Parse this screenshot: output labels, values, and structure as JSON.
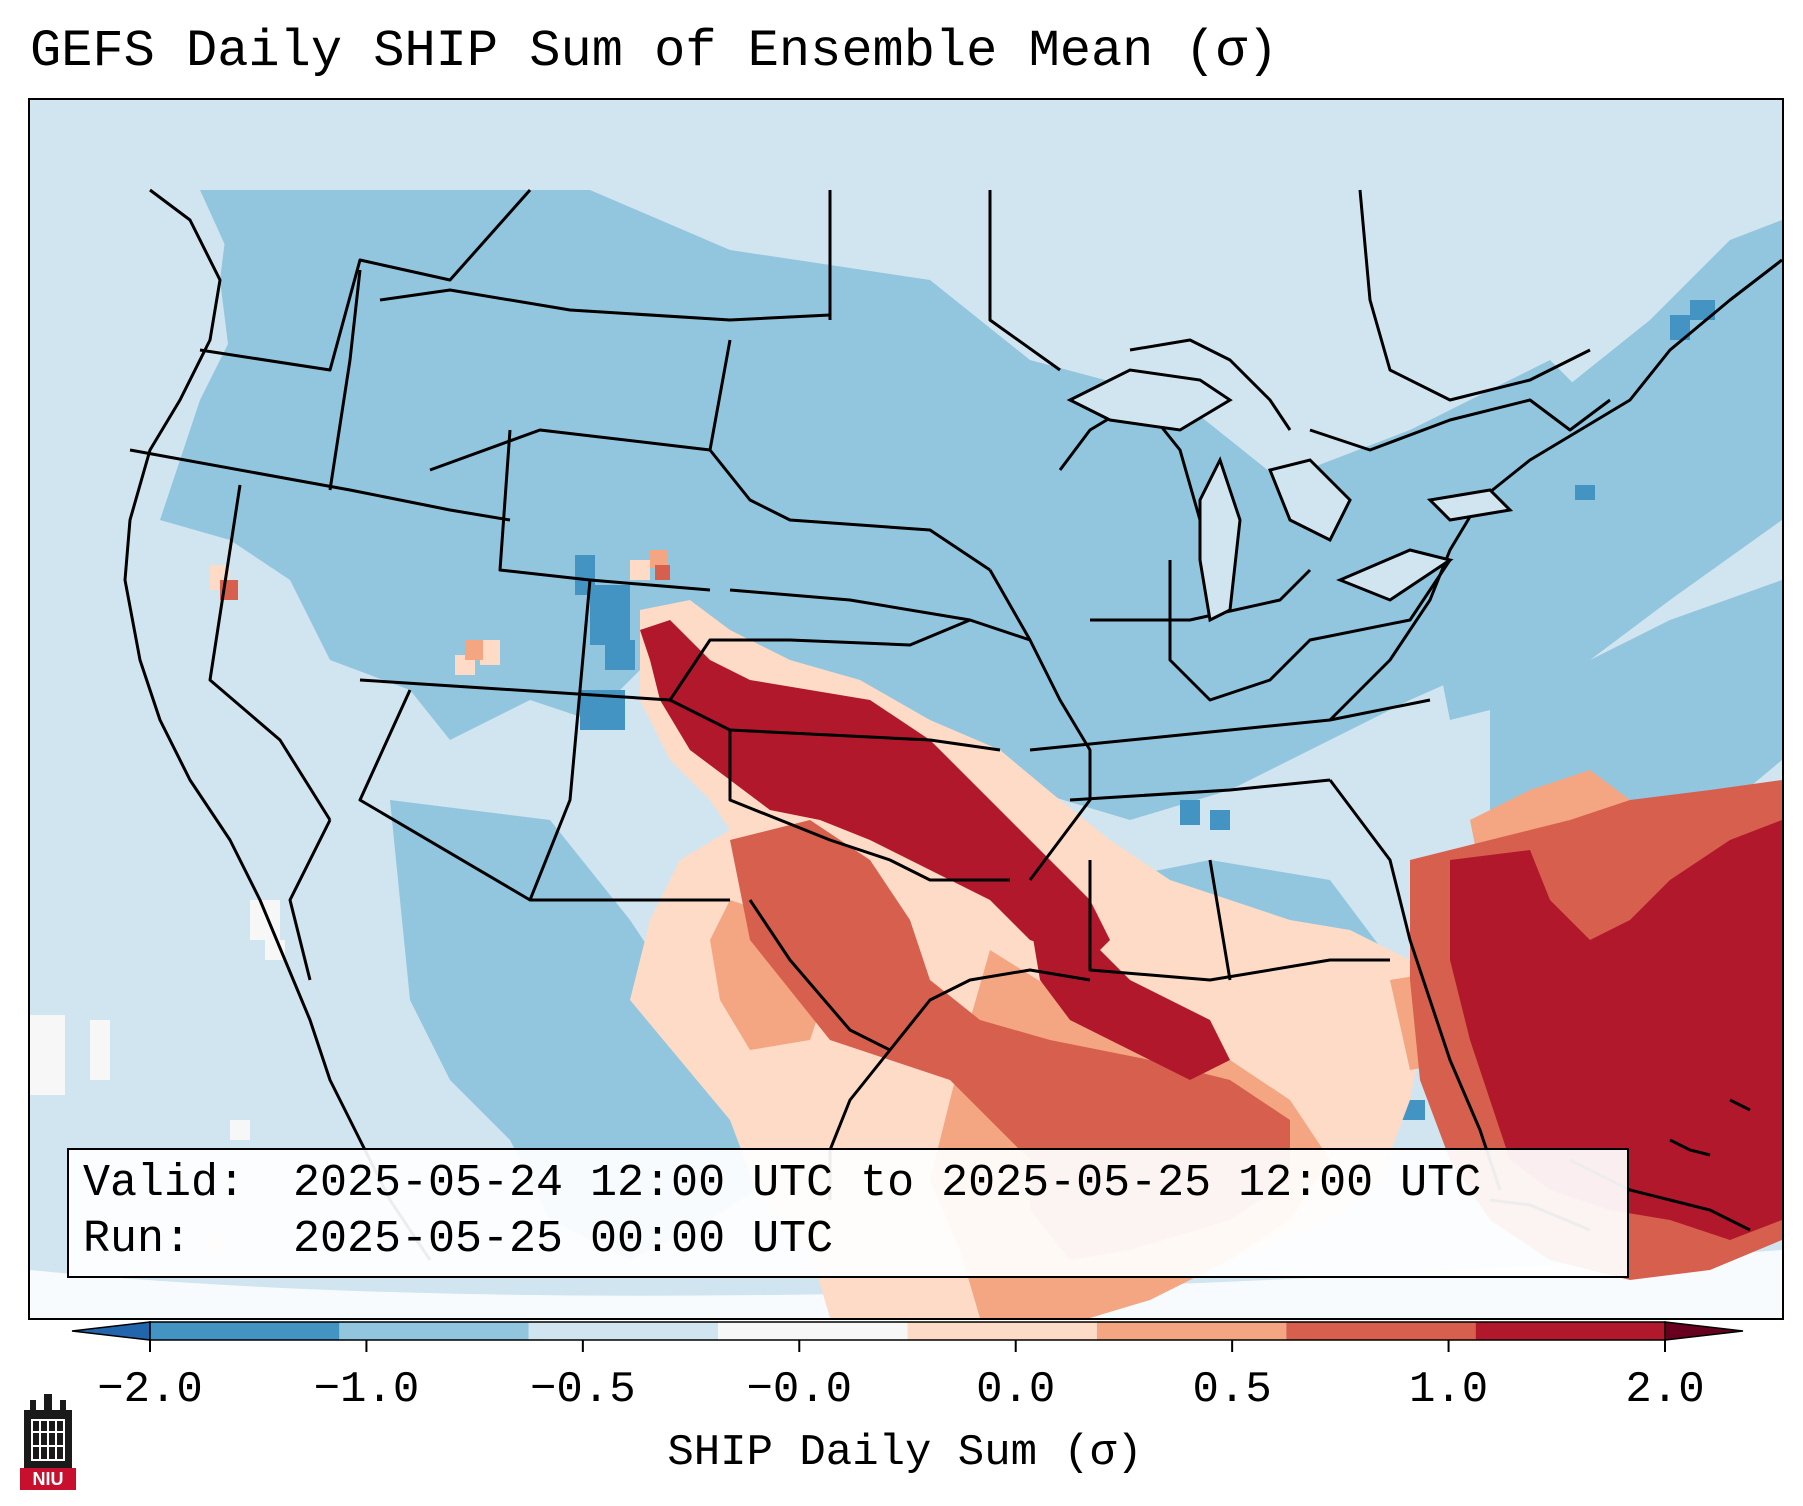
{
  "title": "GEFS Daily SHIP Sum of Ensemble Mean (σ)",
  "info": {
    "valid_label": "Valid:",
    "valid_value": "2025-05-24 12:00 UTC to 2025-05-25 12:00 UTC",
    "run_label": "Run:",
    "run_value": "2025-05-25 00:00 UTC"
  },
  "colorbar": {
    "label": "SHIP Daily Sum (σ)",
    "ticks": [
      "−2.0",
      "−1.0",
      "−0.5",
      "−0.0",
      "0.0",
      "0.5",
      "1.0",
      "2.0"
    ],
    "colors": [
      "#4393c3",
      "#92c5de",
      "#d1e5f0",
      "#f7f7f7",
      "#fddbc7",
      "#f4a582",
      "#d6604d",
      "#b2182b"
    ],
    "under_color": "#2166ac",
    "over_color": "#67001f"
  },
  "legend_classes": {
    "strong_negative": "#4393c3",
    "moderate_negative": "#92c5de",
    "weak_negative": "#d1e5f0",
    "near_zero": "#f7f7f7",
    "weak_positive": "#fddbc7",
    "moderate_positive": "#f4a582",
    "strong_positive": "#d6604d",
    "extreme_positive": "#b2182b"
  },
  "logo": {
    "text": "NIU"
  }
}
